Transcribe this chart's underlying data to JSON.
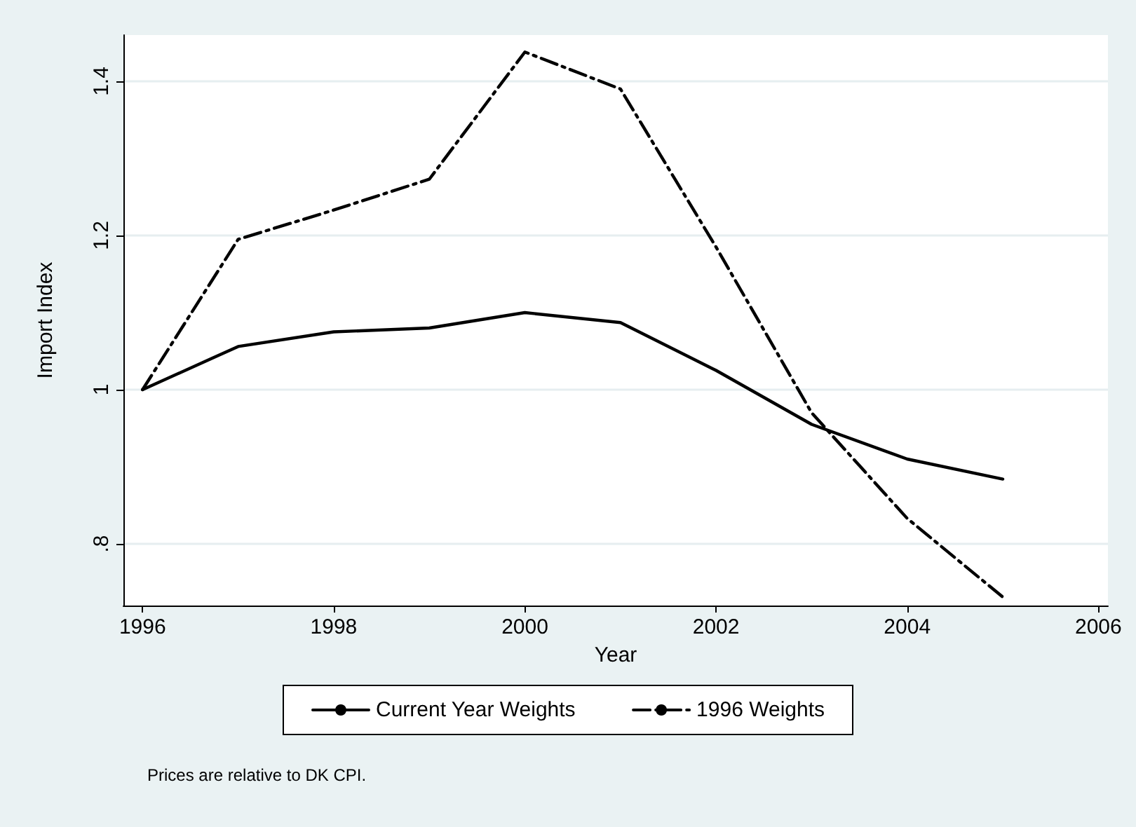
{
  "chart_data": {
    "type": "line",
    "xlabel": "Year",
    "ylabel": "Import Index",
    "x": [
      1996,
      1997,
      1998,
      1999,
      2000,
      2001,
      2002,
      2003,
      2004,
      2005
    ],
    "series": [
      {
        "name": "Current Year Weights",
        "color": "#000000",
        "line_style": "solid",
        "values": [
          1.0,
          1.056,
          1.075,
          1.08,
          1.1,
          1.087,
          1.025,
          0.955,
          0.91,
          0.884
        ]
      },
      {
        "name": "1996 Weights",
        "color": "#000000",
        "line_style": "dashed",
        "values": [
          1.0,
          1.195,
          1.233,
          1.273,
          1.438,
          1.39,
          1.185,
          0.97,
          0.833,
          0.731
        ]
      }
    ],
    "xlim": [
      1995.8,
      2006.1
    ],
    "xticks": [
      1996,
      1998,
      2000,
      2002,
      2004,
      2006
    ],
    "ylim": [
      0.72,
      1.46
    ],
    "yticks": [
      {
        "value": 0.8,
        "label": ".8"
      },
      1,
      1.2,
      1.4
    ],
    "grid": "y",
    "legend": "bottom",
    "marker": "none",
    "annotations": [
      "Prices are relative to DK CPI."
    ]
  }
}
